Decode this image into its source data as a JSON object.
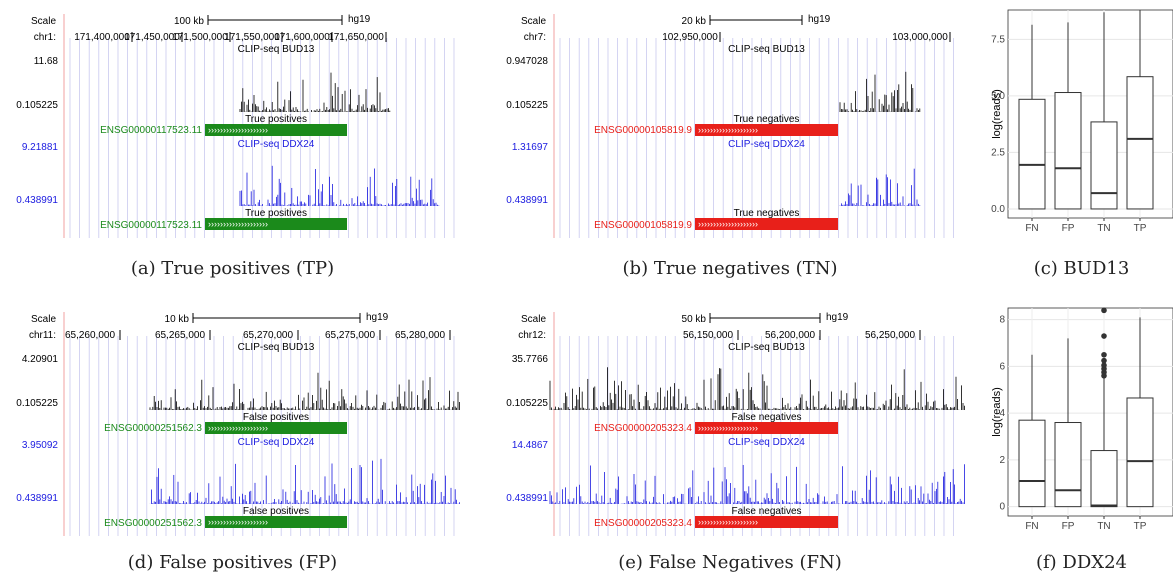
{
  "browser_panels": [
    {
      "id": "a",
      "scale_label": "Scale",
      "chrom": "chr1:",
      "scalebar": "100 kb",
      "genome": "hg19",
      "coords": [
        "171,400,000",
        "171,450,000",
        "171,500,000",
        "171,550,000",
        "171,600,000",
        "171,650,000"
      ],
      "track1_title": "CLIP-seq BUD13",
      "track1_max": "11.68",
      "track1_min": "0.105225",
      "gene_label1": "True positives",
      "gene_name": "ENSG00000117523.11",
      "track2_title": "CLIP-seq DDX24",
      "track2_max": "9.21881",
      "track2_min": "0.438991",
      "gene_label2": "True positives",
      "gene_color": "#1b8a1b",
      "caption": "(a) True positives (TP)"
    },
    {
      "id": "b",
      "scale_label": "Scale",
      "chrom": "chr7:",
      "scalebar": "20 kb",
      "genome": "hg19",
      "coords": [
        "102,950,000",
        "103,000,000"
      ],
      "track1_title": "CLIP-seq BUD13",
      "track1_max": "0.947028",
      "track1_min": "0.105225",
      "gene_label1": "True negatives",
      "gene_name": "ENSG00000105819.9",
      "track2_title": "CLIP-seq DDX24",
      "track2_max": "1.31697",
      "track2_min": "0.438991",
      "gene_label2": "True negatives",
      "gene_color": "#e8201a",
      "caption": "(b) True negatives (TN)"
    },
    {
      "id": "d",
      "scale_label": "Scale",
      "chrom": "chr11:",
      "scalebar": "10 kb",
      "genome": "hg19",
      "coords": [
        "65,260,000",
        "65,265,000",
        "65,270,000",
        "65,275,000",
        "65,280,000"
      ],
      "track1_title": "CLIP-seq BUD13",
      "track1_max": "4.20901",
      "track1_min": "0.105225",
      "gene_label1": "False positives",
      "gene_name": "ENSG00000251562.3",
      "track2_title": "CLIP-seq DDX24",
      "track2_max": "3.95092",
      "track2_min": "0.438991",
      "gene_label2": "False positives",
      "gene_color": "#1b8a1b",
      "caption": "(d) False positives (FP)"
    },
    {
      "id": "e",
      "scale_label": "Scale",
      "chrom": "chr12:",
      "scalebar": "50 kb",
      "genome": "hg19",
      "coords": [
        "56,150,000",
        "56,200,000",
        "56,250,000"
      ],
      "track1_title": "CLIP-seq BUD13",
      "track1_max": "35.7766",
      "track1_min": "0.105225",
      "gene_label1": "False negatives",
      "gene_name": "ENSG00000205323.4",
      "track2_title": "CLIP-seq DDX24",
      "track2_max": "14.4867",
      "track2_min": "0.438991",
      "gene_label2": "False negatives",
      "gene_color": "#e8201a",
      "caption": "(e) False Negatives (FN)"
    }
  ],
  "chart_data": [
    {
      "type": "box",
      "id": "c",
      "caption": "(c) BUD13",
      "ylabel": "log(reads)",
      "ylim": [
        -0.4,
        8.8
      ],
      "yticks": [
        "0.0",
        "2.5",
        "5.0",
        "7.5"
      ],
      "categories": [
        "FN",
        "FP",
        "TN",
        "TP"
      ],
      "boxes": [
        {
          "whisker_low": 0,
          "q1": 0,
          "median": 1.95,
          "q3": 4.85,
          "whisker_high": 8.15
        },
        {
          "whisker_low": 0,
          "q1": 0,
          "median": 1.8,
          "q3": 5.15,
          "whisker_high": 8.25
        },
        {
          "whisker_low": 0,
          "q1": 0,
          "median": 0.7,
          "q3": 3.85,
          "whisker_high": 8.7
        },
        {
          "whisker_low": 0,
          "q1": 0,
          "median": 3.1,
          "q3": 5.85,
          "whisker_high": 8.8
        }
      ]
    },
    {
      "type": "box",
      "id": "f",
      "caption": "(f) DDX24",
      "ylabel": "log(reads)",
      "ylim": [
        -0.4,
        8.5
      ],
      "yticks": [
        "0",
        "2",
        "4",
        "6",
        "8"
      ],
      "categories": [
        "FN",
        "FP",
        "TN",
        "TP"
      ],
      "boxes": [
        {
          "whisker_low": 0,
          "q1": 0,
          "median": 1.1,
          "q3": 3.7,
          "whisker_high": 6.5
        },
        {
          "whisker_low": 0,
          "q1": 0,
          "median": 0.7,
          "q3": 3.6,
          "whisker_high": 7.2
        },
        {
          "whisker_low": 0,
          "q1": 0,
          "median": 0.05,
          "q3": 2.4,
          "whisker_high": 5.5,
          "outliers": [
            5.6,
            5.75,
            5.9,
            6.05,
            6.25,
            6.5,
            7.3,
            8.4
          ]
        },
        {
          "whisker_low": 0,
          "q1": 0,
          "median": 1.95,
          "q3": 4.65,
          "whisker_high": 8.1
        }
      ]
    }
  ]
}
